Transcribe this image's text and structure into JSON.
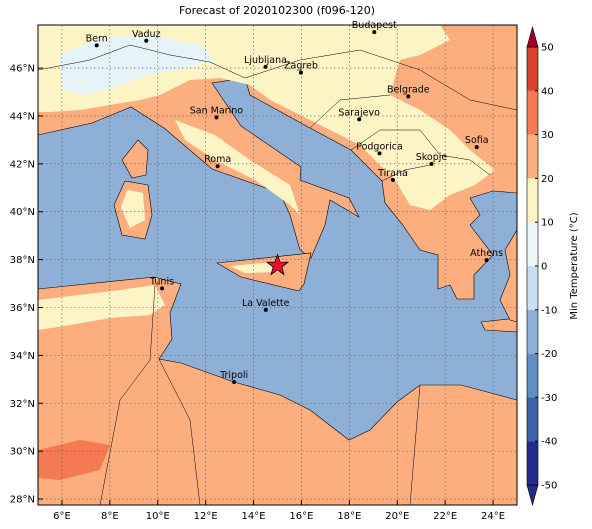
{
  "title": "Forecast of 2020102300 (f096-120)",
  "map": {
    "xlim": [
      5,
      25
    ],
    "ylim": [
      27.75,
      47.8
    ],
    "xticks": [
      {
        "value": 6,
        "label": "6°E"
      },
      {
        "value": 8,
        "label": "8°E"
      },
      {
        "value": 10,
        "label": "10°E"
      },
      {
        "value": 12,
        "label": "12°E"
      },
      {
        "value": 14,
        "label": "14°E"
      },
      {
        "value": 16,
        "label": "16°E"
      },
      {
        "value": 18,
        "label": "18°E"
      },
      {
        "value": 20,
        "label": "20°E"
      },
      {
        "value": 22,
        "label": "22°E"
      },
      {
        "value": 24,
        "label": "24°E"
      }
    ],
    "yticks": [
      {
        "value": 28,
        "label": "28°N"
      },
      {
        "value": 30,
        "label": "30°N"
      },
      {
        "value": 32,
        "label": "32°N"
      },
      {
        "value": 34,
        "label": "34°N"
      },
      {
        "value": 36,
        "label": "36°N"
      },
      {
        "value": 38,
        "label": "38°N"
      },
      {
        "value": 40,
        "label": "40°N"
      },
      {
        "value": 42,
        "label": "42°N"
      },
      {
        "value": 44,
        "label": "44°N"
      },
      {
        "value": 46,
        "label": "46°N"
      }
    ],
    "grid": true,
    "cities": [
      {
        "name": "Bern",
        "lon": 7.45,
        "lat": 46.95
      },
      {
        "name": "Vaduz",
        "lon": 9.52,
        "lat": 47.14
      },
      {
        "name": "Budapest",
        "lon": 19.04,
        "lat": 47.5
      },
      {
        "name": "Ljubljana",
        "lon": 14.5,
        "lat": 46.05
      },
      {
        "name": "Zagreb",
        "lon": 15.98,
        "lat": 45.81
      },
      {
        "name": "Belgrade",
        "lon": 20.46,
        "lat": 44.82
      },
      {
        "name": "San Marino",
        "lon": 12.45,
        "lat": 43.94
      },
      {
        "name": "Sarajevo",
        "lon": 18.41,
        "lat": 43.86
      },
      {
        "name": "Podgorica",
        "lon": 19.26,
        "lat": 42.44
      },
      {
        "name": "Roma",
        "lon": 12.5,
        "lat": 41.9
      },
      {
        "name": "Skopje",
        "lon": 21.43,
        "lat": 42.0
      },
      {
        "name": "Sofia",
        "lon": 23.32,
        "lat": 42.7
      },
      {
        "name": "Tirana",
        "lon": 19.82,
        "lat": 41.33
      },
      {
        "name": "Athens",
        "lon": 23.73,
        "lat": 37.98
      },
      {
        "name": "Tunis",
        "lon": 10.18,
        "lat": 36.8
      },
      {
        "name": "La Valette",
        "lon": 14.51,
        "lat": 35.9
      },
      {
        "name": "Tripoli",
        "lon": 13.19,
        "lat": 32.89
      }
    ],
    "marker": {
      "lon": 15.0,
      "lat": 37.75,
      "color": "#e8102a"
    }
  },
  "colorbar": {
    "label": "Min Temperature (°C)",
    "ticks": [
      -50,
      -40,
      -30,
      -20,
      -10,
      0,
      10,
      20,
      30,
      40,
      50
    ],
    "colors": [
      "#232c8c",
      "#3b62a8",
      "#5f8fc2",
      "#8fb0d6",
      "#c7e0ee",
      "#eef8f8",
      "#fdf4c6",
      "#fcae7f",
      "#f57a52",
      "#d9402e",
      "#a50026"
    ],
    "extend": "both"
  }
}
